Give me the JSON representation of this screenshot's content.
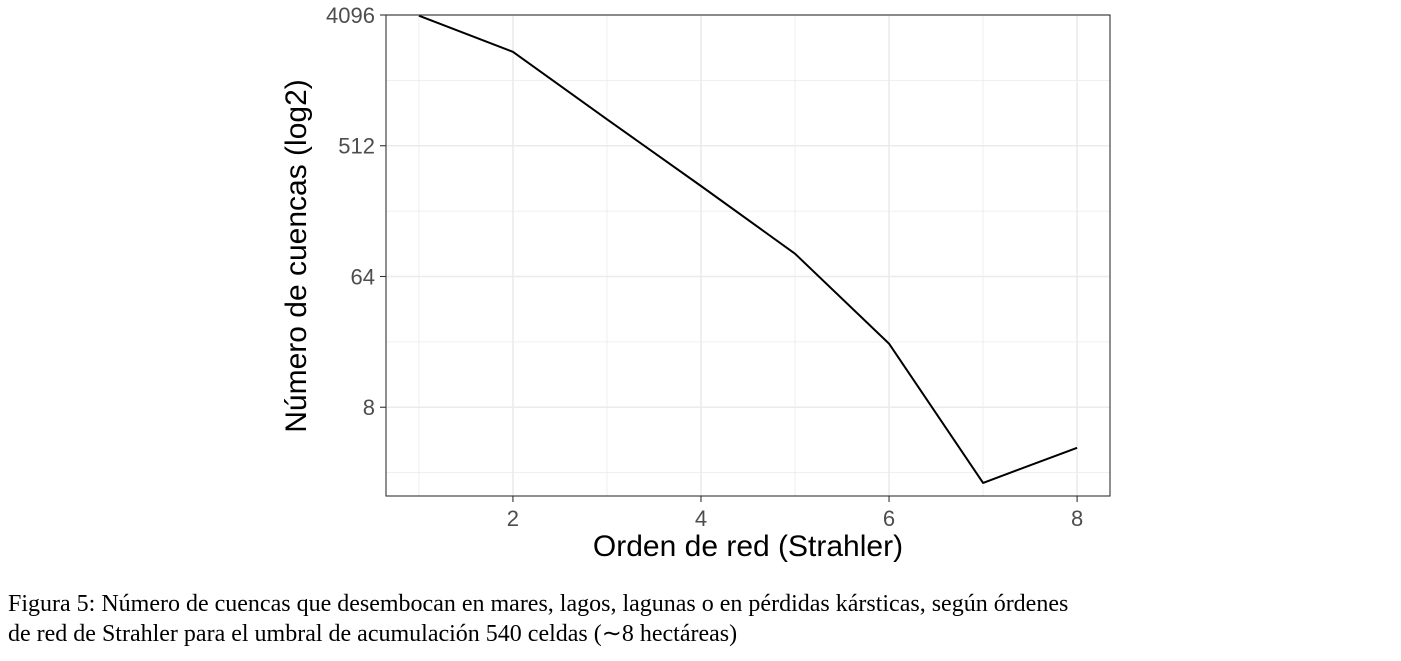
{
  "chart_data": {
    "type": "line",
    "xlabel": "Orden de red (Strahler)",
    "ylabel": "Número de cuencas (log2)",
    "x_scale": "linear",
    "y_scale": "log2",
    "xlim": [
      0.65,
      8.35
    ],
    "ylim": [
      1.95,
      4096
    ],
    "x_ticks": [
      2,
      4,
      6,
      8
    ],
    "x_tick_labels": [
      "2",
      "4",
      "6",
      "8"
    ],
    "y_ticks": [
      8,
      64,
      512,
      4096
    ],
    "y_tick_labels": [
      "8",
      "64",
      "512",
      "4096"
    ],
    "grid": true,
    "series": [
      {
        "x": [
          1,
          2,
          3,
          4,
          5,
          6,
          7,
          8
        ],
        "values": [
          4050,
          2280,
          780,
          270,
          92,
          22,
          2.4,
          4.2
        ]
      }
    ]
  },
  "caption": {
    "line1": "Figura 5: Número de cuencas que desembocan en mares, lagos, lagunas o en pérdidas kársticas, según órdenes",
    "line2": "de red de Strahler para el umbral de acumulación 540 celdas (∼8 hectáreas)"
  }
}
